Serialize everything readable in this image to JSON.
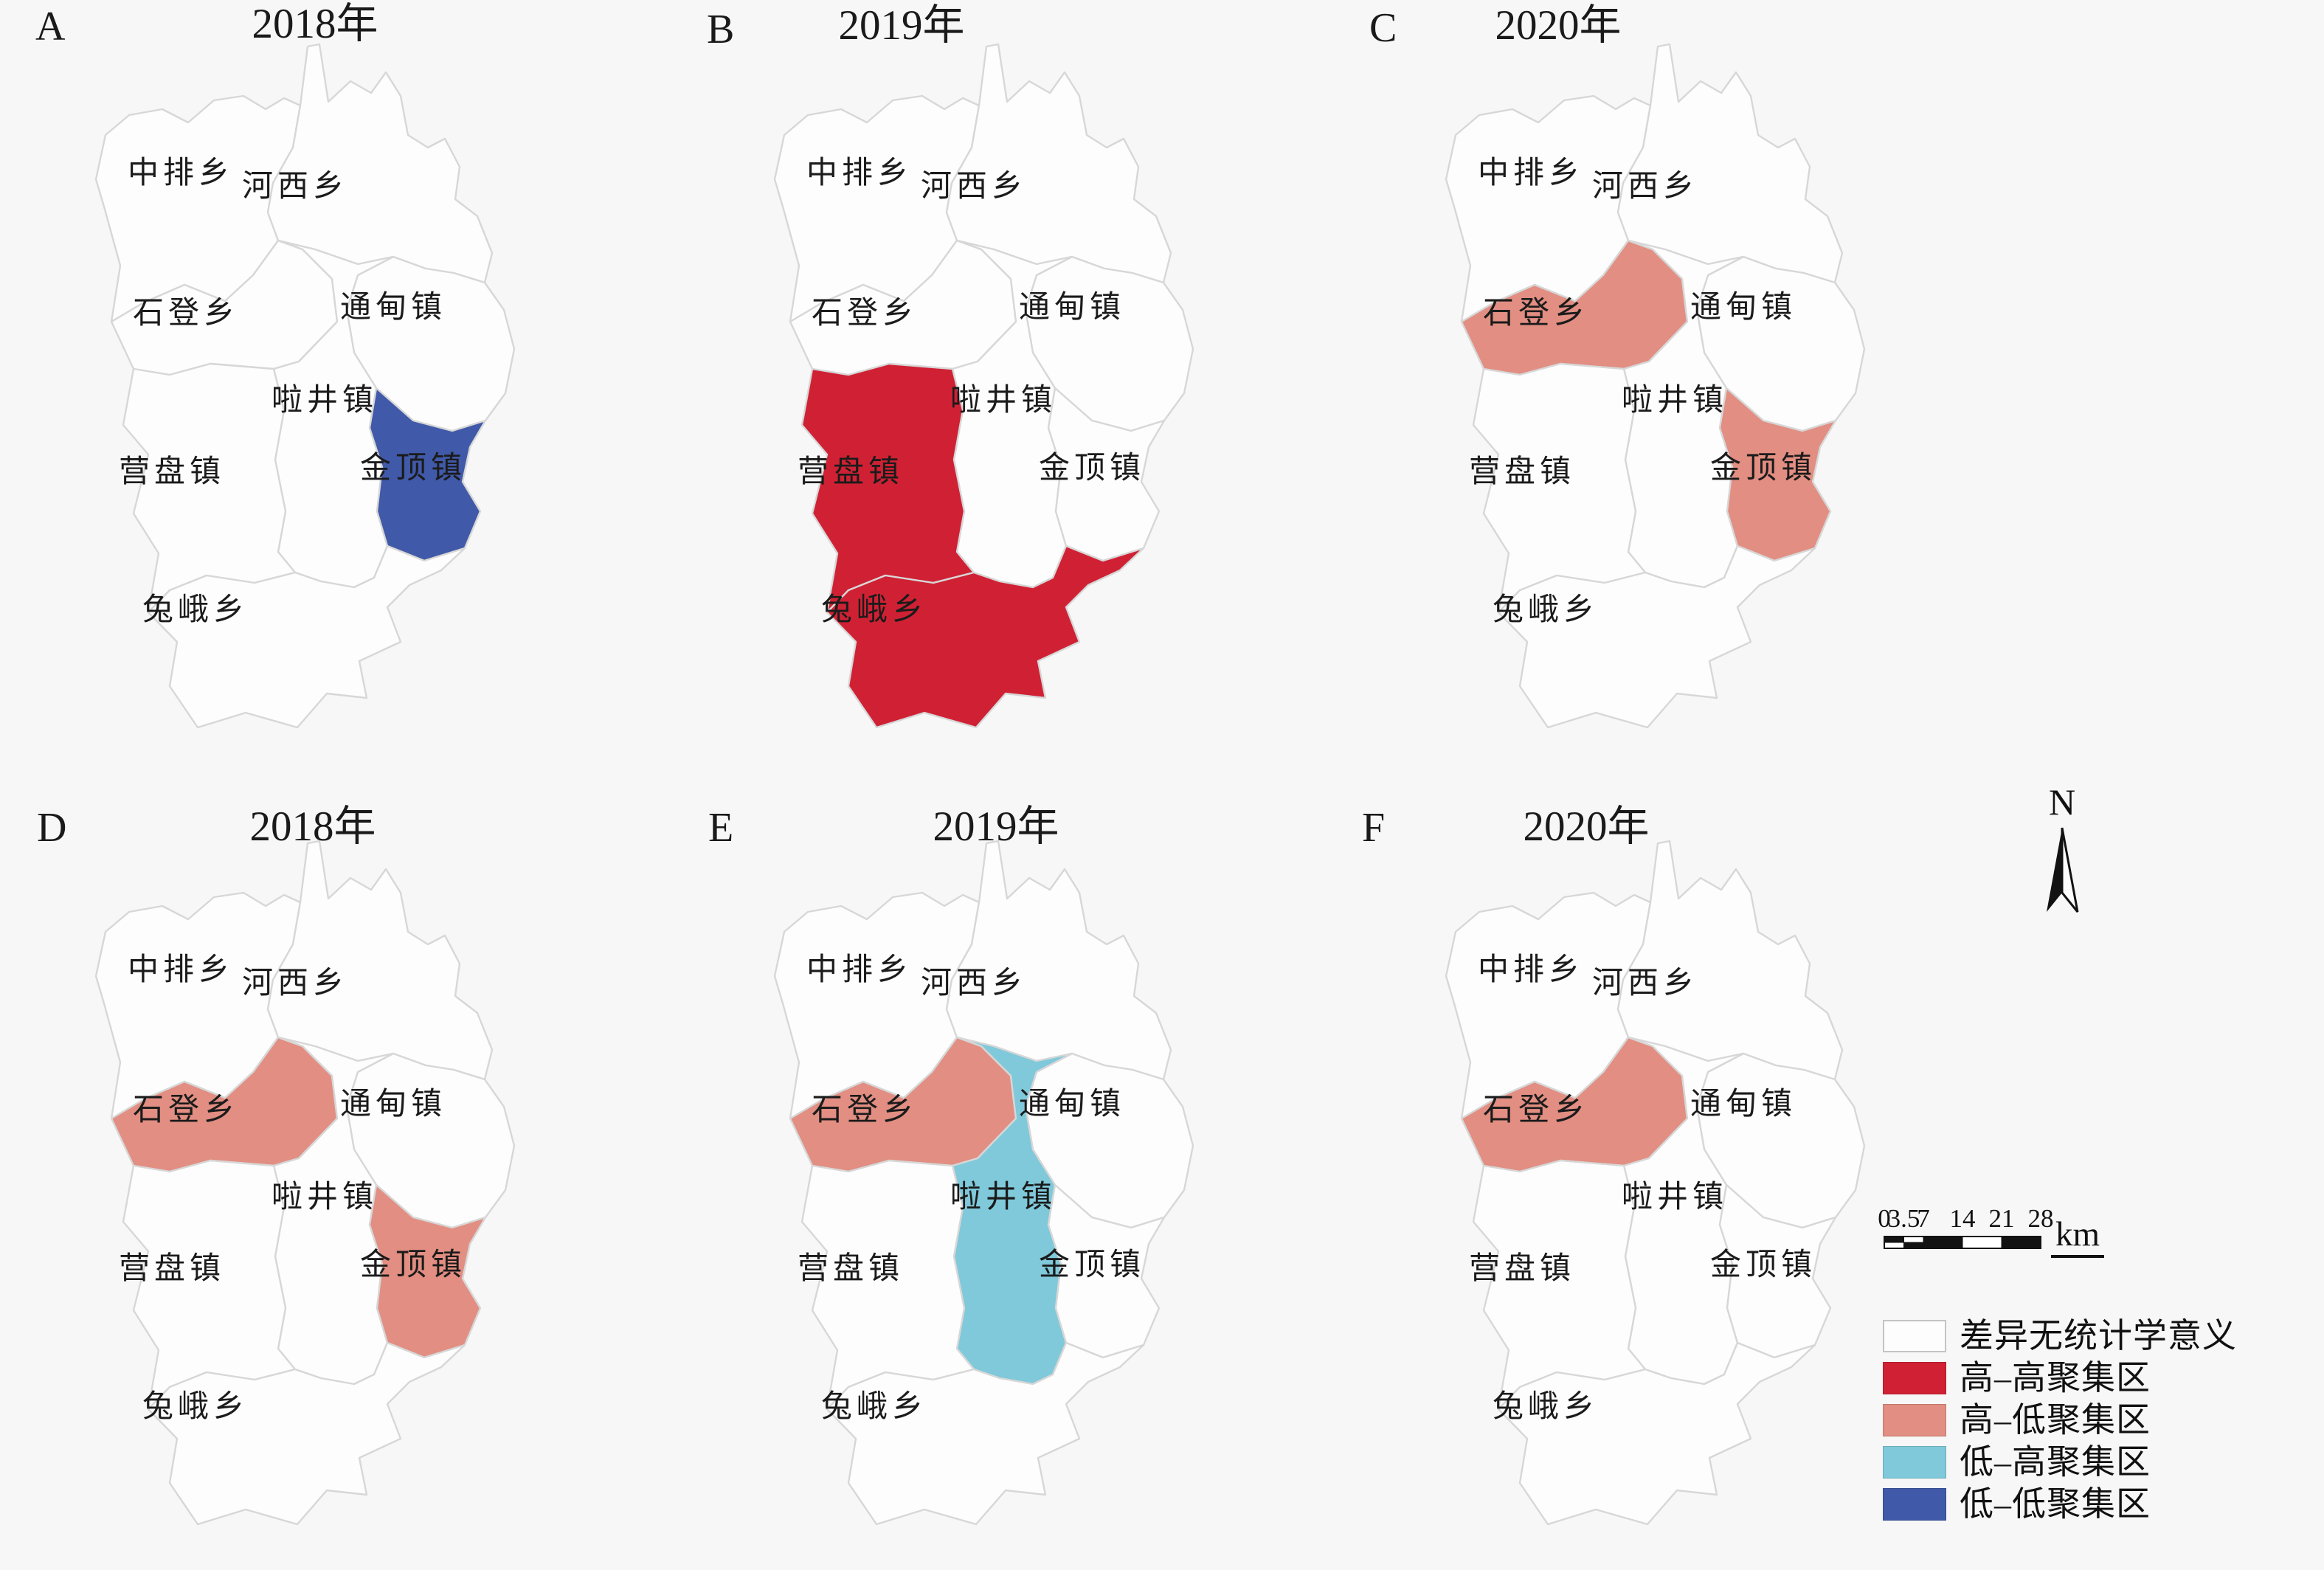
{
  "figure": {
    "background": "#f7f7f7",
    "map_fill": "#fdfdfd",
    "map_border": "#d7d7d7"
  },
  "townships": [
    {
      "key": "zhongpai",
      "label": "中排乡"
    },
    {
      "key": "hexi",
      "label": "河西乡"
    },
    {
      "key": "shideng",
      "label": "石登乡"
    },
    {
      "key": "tongdian",
      "label": "通甸镇"
    },
    {
      "key": "lajing",
      "label": "啦井镇"
    },
    {
      "key": "yingpan",
      "label": "营盘镇"
    },
    {
      "key": "jinding",
      "label": "金顶镇"
    },
    {
      "key": "tue",
      "label": "兔峨乡"
    }
  ],
  "panels": [
    {
      "letter": "A",
      "title": "2018年",
      "clusters": {
        "jinding": "low_low"
      }
    },
    {
      "letter": "B",
      "title": "2019年",
      "clusters": {
        "yingpan": "high_high",
        "tue": "high_high"
      }
    },
    {
      "letter": "C",
      "title": "2020年",
      "clusters": {
        "shideng": "high_low",
        "jinding": "high_low"
      }
    },
    {
      "letter": "D",
      "title": "2018年",
      "clusters": {
        "shideng": "high_low",
        "jinding": "high_low"
      }
    },
    {
      "letter": "E",
      "title": "2019年",
      "clusters": {
        "shideng": "high_low",
        "lajing": "low_high"
      }
    },
    {
      "letter": "F",
      "title": "2020年",
      "clusters": {
        "shideng": "high_low"
      }
    }
  ],
  "legend": {
    "items": [
      {
        "key": "none",
        "label": "差异无统计学意义"
      },
      {
        "key": "high_high",
        "label": "高–高聚集区"
      },
      {
        "key": "high_low",
        "label": "高–低聚集区"
      },
      {
        "key": "low_high",
        "label": "低–高聚集区"
      },
      {
        "key": "low_low",
        "label": "低–低聚集区"
      }
    ]
  },
  "colors": {
    "none": "#fdfdfd",
    "high_high": "#d02134",
    "high_low": "#e28e82",
    "low_high": "#7fc9da",
    "low_low": "#4059a8"
  },
  "north_arrow": {
    "label": "N"
  },
  "scale_bar": {
    "ticks": [
      "0",
      "3.5",
      "7",
      "14",
      "21",
      "28"
    ],
    "unit": "km"
  }
}
